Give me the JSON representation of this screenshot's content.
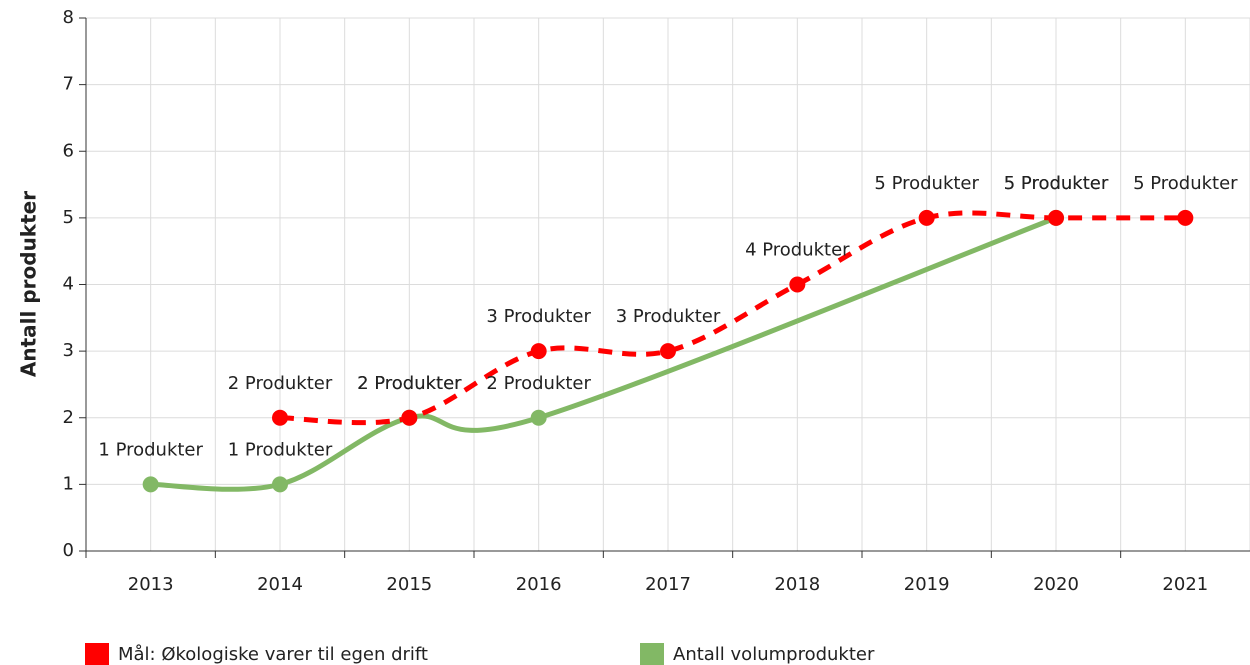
{
  "chart_data": {
    "type": "line",
    "ylabel": "Antall produkter",
    "xlim": [
      2012.5,
      2021.5
    ],
    "xticks": [
      2013,
      2014,
      2015,
      2016,
      2017,
      2018,
      2019,
      2020,
      2021
    ],
    "ylim": [
      0,
      8
    ],
    "yticks": [
      0,
      1,
      2,
      3,
      4,
      5,
      6,
      7,
      8
    ],
    "grid": true,
    "legend": "bottom",
    "series": [
      {
        "name": "Mål: Økologiske varer til egen drift",
        "color": "#ff0000",
        "dashed": true,
        "x": [
          2014,
          2015,
          2016,
          2017,
          2018,
          2019,
          2020,
          2021
        ],
        "values": [
          2,
          2,
          3,
          3,
          4,
          5,
          5,
          5
        ],
        "value_labels": [
          "2 Produkter",
          "2 Produkter",
          "3 Produkter",
          "3 Produkter",
          "4 Produkter",
          "5 Produkter",
          "5 Produkter",
          "5 Produkter"
        ]
      },
      {
        "name": "Antall volumprodukter",
        "color": "#82b865",
        "dashed": false,
        "x": [
          2013,
          2014,
          2015,
          2016,
          2020
        ],
        "values": [
          1,
          1,
          2,
          2,
          5
        ],
        "value_labels": [
          "1 Produkter",
          "1 Produkter",
          "2 Produkter",
          "2 Produkter",
          "5 Produkter"
        ]
      }
    ]
  }
}
